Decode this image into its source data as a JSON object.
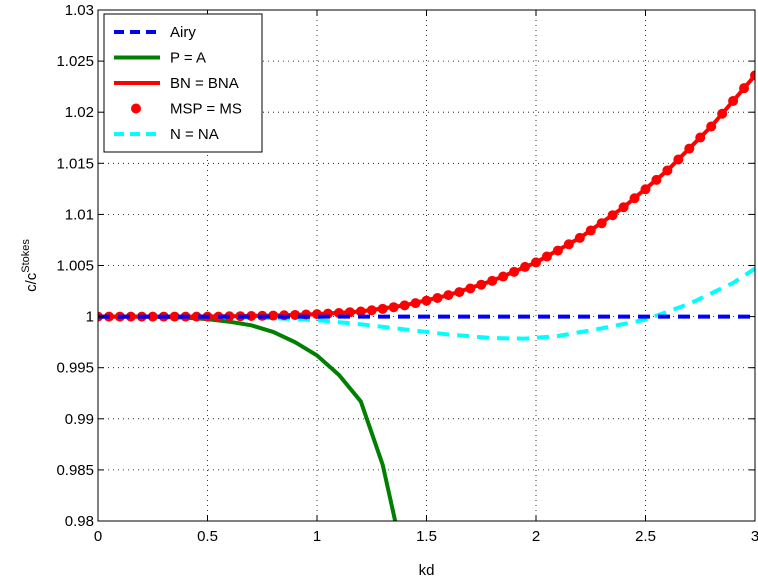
{
  "chart_data": {
    "type": "line",
    "title": "",
    "xlabel": "kd",
    "ylabel_main": "c/c",
    "ylabel_sup": "Stokes",
    "xlim": [
      0,
      3
    ],
    "ylim": [
      0.98,
      1.03
    ],
    "xticks": [
      0,
      0.5,
      1,
      1.5,
      2,
      2.5,
      3
    ],
    "xtick_labels": [
      "0",
      "0.5",
      "1",
      "1.5",
      "2",
      "2.5",
      "3"
    ],
    "yticks": [
      0.98,
      0.985,
      0.99,
      0.995,
      1,
      1.005,
      1.01,
      1.015,
      1.02,
      1.025,
      1.03
    ],
    "ytick_labels": [
      "0.98",
      "0.985",
      "0.99",
      "0.995",
      "1",
      "1.005",
      "1.01",
      "1.015",
      "1.02",
      "1.025",
      "1.03"
    ],
    "grid": true,
    "legend_position": "top-left",
    "series": [
      {
        "name": "Airy",
        "color": "#0000ff",
        "style": "dashed",
        "x": [
          0,
          3
        ],
        "y": [
          1.0,
          1.0
        ]
      },
      {
        "name": "P = A",
        "color": "#008000",
        "style": "solid",
        "x": [
          0,
          0.2,
          0.4,
          0.5,
          0.6,
          0.7,
          0.8,
          0.9,
          1.0,
          1.1,
          1.2,
          1.3,
          1.36
        ],
        "y": [
          1.0,
          1.0,
          0.9999,
          0.99975,
          0.9995,
          0.99915,
          0.9985,
          0.9975,
          0.9962,
          0.9943,
          0.9917,
          0.9855,
          0.9797
        ]
      },
      {
        "name": "BN = BNA",
        "color": "#ff0000",
        "style": "solid",
        "x": [
          0,
          0.2,
          0.4,
          0.6,
          0.8,
          1.0,
          1.2,
          1.4,
          1.6,
          1.8,
          2.0,
          2.2,
          2.4,
          2.6,
          2.8,
          3.0
        ],
        "y": [
          1.0,
          1.0,
          1.0,
          1.00003,
          1.0001,
          1.00024,
          1.0005,
          1.0011,
          1.0021,
          1.0035,
          1.0053,
          1.0077,
          1.0107,
          1.0143,
          1.0186,
          1.0236
        ]
      },
      {
        "name": "MSP = MS",
        "color": "#ff0000",
        "style": "markers",
        "x": [
          0,
          0.05,
          0.1,
          0.15,
          0.2,
          0.25,
          0.3,
          0.35,
          0.4,
          0.45,
          0.5,
          0.55,
          0.6,
          0.65,
          0.7,
          0.75,
          0.8,
          0.85,
          0.9,
          0.95,
          1.0,
          1.05,
          1.1,
          1.15,
          1.2,
          1.25,
          1.3,
          1.35,
          1.4,
          1.45,
          1.5,
          1.55,
          1.6,
          1.65,
          1.7,
          1.75,
          1.8,
          1.85,
          1.9,
          1.95,
          2.0,
          2.05,
          2.1,
          2.15,
          2.2,
          2.25,
          2.3,
          2.35,
          2.4,
          2.45,
          2.5,
          2.55,
          2.6,
          2.65,
          2.7,
          2.75,
          2.8,
          2.85,
          2.9,
          2.95,
          3.0
        ],
        "y": [
          1.0,
          1.0,
          1.0,
          1.0,
          1.0,
          1.0,
          1.0,
          1.0,
          1.0,
          1.0,
          1.0,
          1.0,
          1.00003,
          1.00004,
          1.00006,
          1.00008,
          1.0001,
          1.00013,
          1.00016,
          1.0002,
          1.00024,
          1.00029,
          1.00035,
          1.00042,
          1.0005,
          1.00062,
          1.00076,
          1.00092,
          1.0011,
          1.00132,
          1.00156,
          1.00182,
          1.0021,
          1.0024,
          1.00275,
          1.00312,
          1.0035,
          1.00392,
          1.00438,
          1.00486,
          1.0053,
          1.00588,
          1.00646,
          1.00708,
          1.0077,
          1.00842,
          1.00914,
          1.00992,
          1.0107,
          1.01158,
          1.01246,
          1.01338,
          1.0143,
          1.01537,
          1.01644,
          1.01752,
          1.0186,
          1.01985,
          1.0211,
          1.02235,
          1.0236
        ]
      },
      {
        "name": "N = NA",
        "color": "#00ffff",
        "style": "dashed",
        "x": [
          0,
          0.4,
          0.6,
          0.8,
          1.0,
          1.2,
          1.4,
          1.6,
          1.8,
          1.95,
          2.1,
          2.3,
          2.5,
          2.7,
          2.9,
          3.0
        ],
        "y": [
          1.0,
          1.0,
          0.99995,
          0.99985,
          0.99965,
          0.99925,
          0.99875,
          0.99825,
          0.9979,
          0.99785,
          0.9981,
          0.99885,
          0.9997,
          1.00125,
          1.0033,
          1.0047
        ]
      }
    ]
  }
}
